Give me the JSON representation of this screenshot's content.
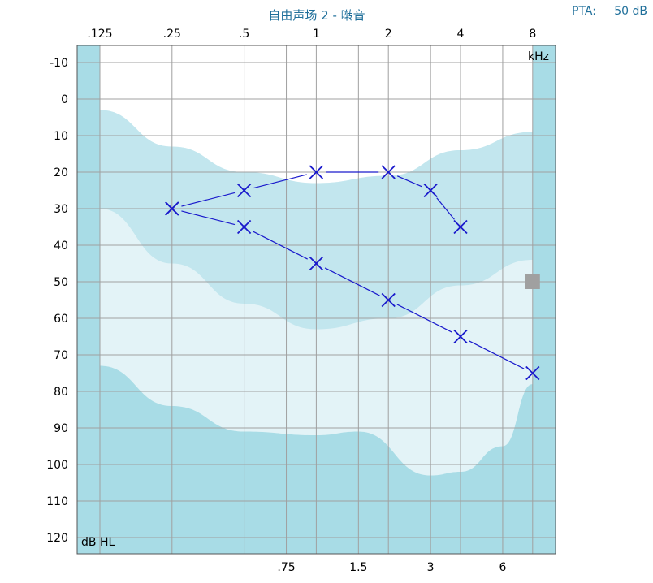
{
  "chart_data": {
    "type": "scatter",
    "title": "自由声场 2 - 啭音",
    "pta_label": "PTA:",
    "pta_value": "50 dB",
    "x_unit": "kHz",
    "y_unit": "dB HL",
    "x_scale": "log2",
    "xlim_khz": [
      0.125,
      8
    ],
    "ylim": [
      -10,
      120
    ],
    "y_inverted": true,
    "grid": true,
    "x_top_ticks": [
      {
        "v": 0.125,
        "label": ".125"
      },
      {
        "v": 0.25,
        "label": ".25"
      },
      {
        "v": 0.5,
        "label": ".5"
      },
      {
        "v": 1,
        "label": "1"
      },
      {
        "v": 2,
        "label": "2"
      },
      {
        "v": 4,
        "label": "4"
      },
      {
        "v": 8,
        "label": "8"
      }
    ],
    "x_bottom_ticks": [
      {
        "v": 0.75,
        "label": ".75"
      },
      {
        "v": 1.5,
        "label": "1.5"
      },
      {
        "v": 3,
        "label": "3"
      },
      {
        "v": 6,
        "label": "6"
      }
    ],
    "y_ticks": [
      -10,
      0,
      10,
      20,
      30,
      40,
      50,
      60,
      70,
      80,
      90,
      100,
      110,
      120
    ],
    "series": [
      {
        "marker": "x",
        "color": "#1a1acc",
        "points": [
          {
            "x": 0.25,
            "y": 30
          },
          {
            "x": 0.5,
            "y": 25
          },
          {
            "x": 1,
            "y": 20
          },
          {
            "x": 2,
            "y": 20
          },
          {
            "x": 3,
            "y": 25
          },
          {
            "x": 4,
            "y": 35
          }
        ]
      },
      {
        "marker": "x",
        "color": "#1a1acc",
        "points": [
          {
            "x": 0.25,
            "y": 30
          },
          {
            "x": 0.5,
            "y": 35
          },
          {
            "x": 1,
            "y": 45
          },
          {
            "x": 2,
            "y": 55
          },
          {
            "x": 4,
            "y": 65
          },
          {
            "x": 8,
            "y": 75
          }
        ]
      }
    ],
    "bands": [
      {
        "name": "band-1",
        "color": "#e2f2f6",
        "upper": [
          [
            0.125,
            3
          ],
          [
            0.25,
            13
          ],
          [
            0.5,
            20
          ],
          [
            1,
            23
          ],
          [
            2,
            21
          ],
          [
            4,
            14
          ],
          [
            8,
            9
          ]
        ],
        "lower": [
          [
            0.125,
            30
          ],
          [
            0.25,
            45
          ],
          [
            0.5,
            56
          ],
          [
            1,
            63
          ],
          [
            2,
            60
          ],
          [
            4,
            51
          ],
          [
            8,
            44
          ]
        ]
      },
      {
        "name": "band-2",
        "color": "#c4e8ef",
        "upper": [
          [
            0.125,
            3
          ],
          [
            0.25,
            13
          ],
          [
            0.5,
            20
          ],
          [
            1,
            23
          ],
          [
            2,
            21
          ],
          [
            4,
            14
          ],
          [
            8,
            9
          ]
        ],
        "lower": [
          [
            0.125,
            30
          ],
          [
            0.25,
            45
          ],
          [
            0.5,
            56
          ],
          [
            1,
            63
          ],
          [
            2,
            60
          ],
          [
            4,
            51
          ],
          [
            8,
            44
          ]
        ]
      },
      {
        "name": "band-3",
        "color": "#e6f4f7",
        "upper": [
          [
            0.125,
            30
          ],
          [
            0.25,
            45
          ],
          [
            0.5,
            56
          ],
          [
            1,
            63
          ],
          [
            2,
            60
          ],
          [
            4,
            51
          ],
          [
            8,
            44
          ]
        ],
        "lower": [
          [
            0.125,
            73
          ],
          [
            0.25,
            84
          ],
          [
            0.5,
            91
          ],
          [
            1,
            92
          ],
          [
            1.5,
            91
          ],
          [
            3,
            103
          ],
          [
            4,
            102
          ],
          [
            6,
            95
          ],
          [
            8,
            78
          ]
        ]
      }
    ],
    "marker_box": {
      "x": 8,
      "y": 50,
      "color": "#a0a0a0"
    }
  },
  "colors": {
    "plot_bg": "#a8dce6",
    "grid": "#a0a0a0",
    "title": "#1f6f9a",
    "axis_text": "#000000"
  }
}
